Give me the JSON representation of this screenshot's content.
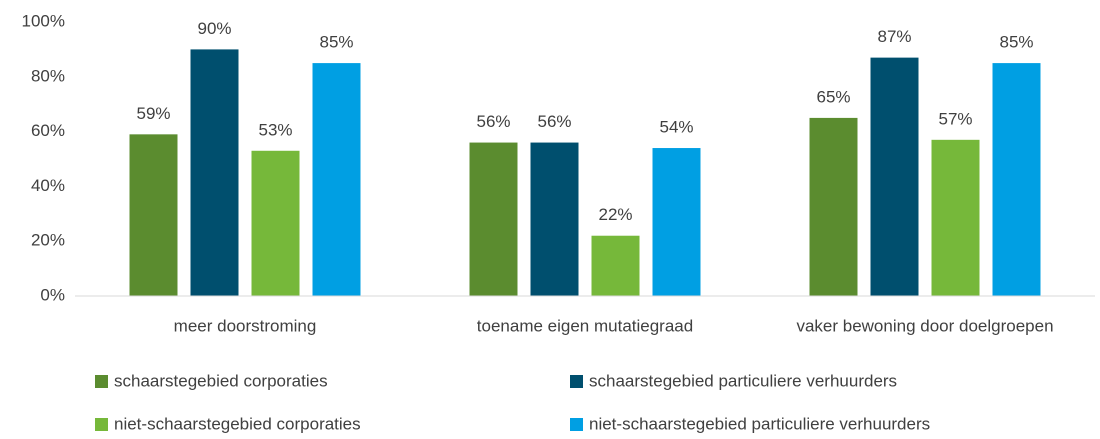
{
  "chart_data": {
    "type": "bar",
    "categories": [
      "meer doorstroming",
      "toename eigen mutatiegraad",
      "vaker bewoning door doelgroepen"
    ],
    "series": [
      {
        "name": "schaarstegebied corporaties",
        "color": "#5b8c2f",
        "values": [
          59,
          56,
          65
        ],
        "value_labels": [
          "59%",
          "56%",
          "65%"
        ]
      },
      {
        "name": "schaarstegebied particuliere verhuurders",
        "color": "#004f6e",
        "values": [
          90,
          56,
          87
        ],
        "value_labels": [
          "90%",
          "56%",
          "87%"
        ]
      },
      {
        "name": "niet-schaarstegebied corporaties",
        "color": "#76b83a",
        "values": [
          53,
          22,
          57
        ],
        "value_labels": [
          "53%",
          "22%",
          "57%"
        ]
      },
      {
        "name": "niet-schaarstegebied particuliere verhuurders",
        "color": "#009fe3",
        "values": [
          85,
          54,
          85
        ],
        "value_labels": [
          "85%",
          "54%",
          "85%"
        ]
      }
    ],
    "ylim": [
      0,
      100
    ],
    "yticks": [
      {
        "value": 0,
        "label": "0%"
      },
      {
        "value": 20,
        "label": "20%"
      },
      {
        "value": 40,
        "label": "40%"
      },
      {
        "value": 60,
        "label": "60%"
      },
      {
        "value": 80,
        "label": "80%"
      },
      {
        "value": 100,
        "label": "100%"
      }
    ],
    "grid": false,
    "legend": "bottom"
  }
}
